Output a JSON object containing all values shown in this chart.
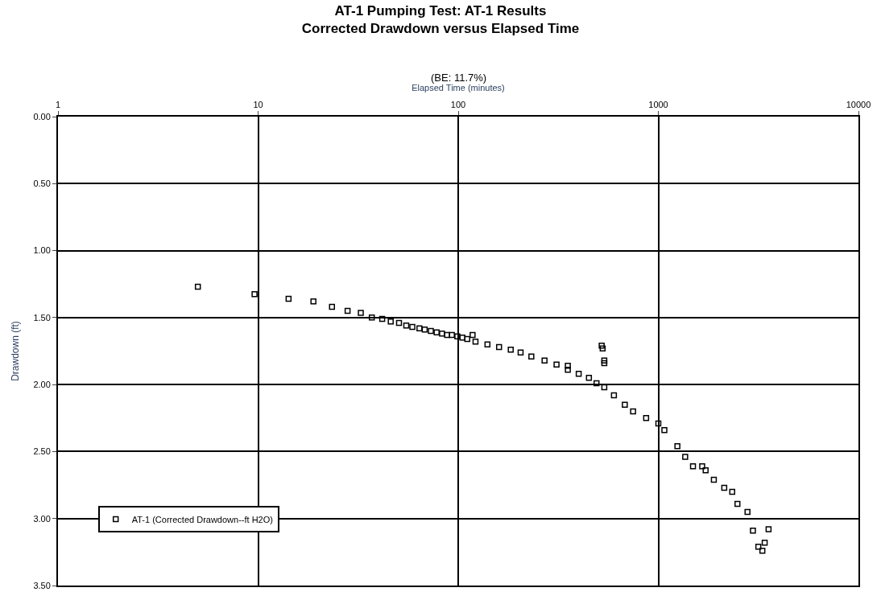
{
  "chart_data": {
    "type": "scatter",
    "title": "AT-1 Pumping Test: AT-1 Results",
    "subtitle": "Corrected Drawdown versus Elapsed Time",
    "annotations": [
      "(BE: 11.7%)"
    ],
    "xlabel": "Elapsed Time (minutes)",
    "ylabel": "Drawdown (ft)",
    "log": "x",
    "xlim": [
      1,
      10000
    ],
    "xticks": [
      1,
      10,
      100,
      1000,
      10000
    ],
    "ylim": [
      3.5,
      0
    ],
    "yticks": [
      {
        "value": 0,
        "label": "0.00"
      },
      {
        "value": 0.5,
        "label": "0.50"
      },
      {
        "value": 1,
        "label": "1.00"
      },
      {
        "value": 1.5,
        "label": "1.50"
      },
      {
        "value": 2,
        "label": "2.00"
      },
      {
        "value": 2.5,
        "label": "2.50"
      },
      {
        "value": 3,
        "label": "3.00"
      },
      {
        "value": 3.5,
        "label": "3.50"
      }
    ],
    "grid": true,
    "legend": "bottom left",
    "marker": "square",
    "series": [
      {
        "name": "AT-1 (Corrected Drawdown--ft H2O)",
        "color": "#000000",
        "x": [
          5,
          9.6,
          14.2,
          18.9,
          23.4,
          28,
          32.6,
          37,
          41.7,
          46,
          50.6,
          55,
          59,
          64,
          68,
          73,
          78,
          83,
          88,
          93,
          99,
          105,
          111,
          118,
          122,
          140,
          160,
          183,
          205,
          232,
          270,
          310,
          353,
          353,
          400,
          450,
          491,
          521,
          527,
          537,
          537,
          537,
          600,
          680,
          748,
          869,
          1000,
          1072,
          1245,
          1362,
          1490,
          1656,
          1723,
          1894,
          2135,
          2340,
          2485,
          2790,
          2970,
          3160,
          3310,
          3400,
          3555
        ],
        "values": [
          1.27,
          1.325,
          1.36,
          1.38,
          1.42,
          1.45,
          1.465,
          1.5,
          1.51,
          1.53,
          1.54,
          1.56,
          1.57,
          1.58,
          1.59,
          1.6,
          1.61,
          1.62,
          1.63,
          1.63,
          1.64,
          1.65,
          1.66,
          1.63,
          1.68,
          1.7,
          1.72,
          1.74,
          1.76,
          1.79,
          1.82,
          1.85,
          1.86,
          1.89,
          1.92,
          1.95,
          1.99,
          1.71,
          1.73,
          1.82,
          1.84,
          2.02,
          2.08,
          2.15,
          2.2,
          2.25,
          2.29,
          2.34,
          2.46,
          2.54,
          2.61,
          2.61,
          2.64,
          2.71,
          2.77,
          2.8,
          2.89,
          2.95,
          3.09,
          3.21,
          3.24,
          3.18,
          3.08
        ]
      }
    ]
  }
}
